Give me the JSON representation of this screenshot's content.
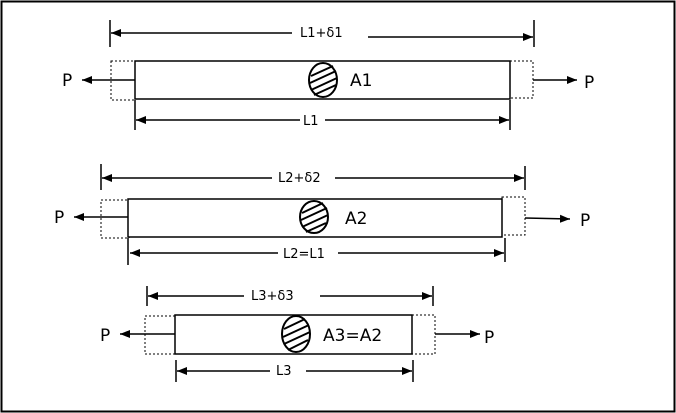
{
  "bars": [
    {
      "force_left": "P",
      "force_right": "P",
      "area": "A1",
      "top_dim": "L1+δ1",
      "bottom_dim": "L1"
    },
    {
      "force_left": "P",
      "force_right": "P",
      "area": "A2",
      "top_dim": "L2+δ2",
      "bottom_dim": "L2=L1"
    },
    {
      "force_left": "P",
      "force_right": "P",
      "area": "A3=A2",
      "top_dim": "L3+δ3",
      "bottom_dim": "L3"
    }
  ]
}
